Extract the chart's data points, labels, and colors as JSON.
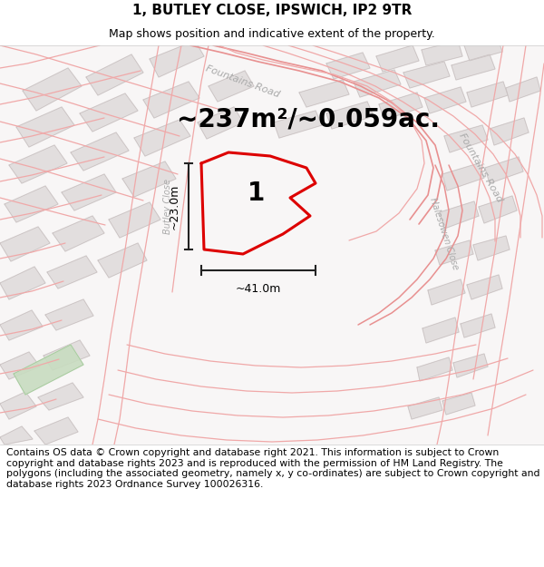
{
  "title_line1": "1, BUTLEY CLOSE, IPSWICH, IP2 9TR",
  "title_line2": "Map shows position and indicative extent of the property.",
  "area_text": "~237m²/~0.059ac.",
  "width_text": "~41.0m",
  "height_text": "~23.0m",
  "label_number": "1",
  "footer_text": "Contains OS data © Crown copyright and database right 2021. This information is subject to Crown copyright and database rights 2023 and is reproduced with the permission of HM Land Registry. The polygons (including the associated geometry, namely x, y co-ordinates) are subject to Crown copyright and database rights 2023 Ordnance Survey 100026316.",
  "bg_color": "#f8f6f6",
  "building_color": "#e2dede",
  "building_outline": "#c8c0c0",
  "road_line_color": "#f0a8a8",
  "road_line_color2": "#e89090",
  "highlight_color": "#dd0000",
  "dim_color": "#222222",
  "green_color": "#c8dcc0",
  "road_label_color": "#aaaaaa",
  "title_fontsize": 11,
  "subtitle_fontsize": 9,
  "footer_fontsize": 7.8,
  "road_label_size": 8,
  "area_fontsize": 20,
  "number_fontsize": 20
}
